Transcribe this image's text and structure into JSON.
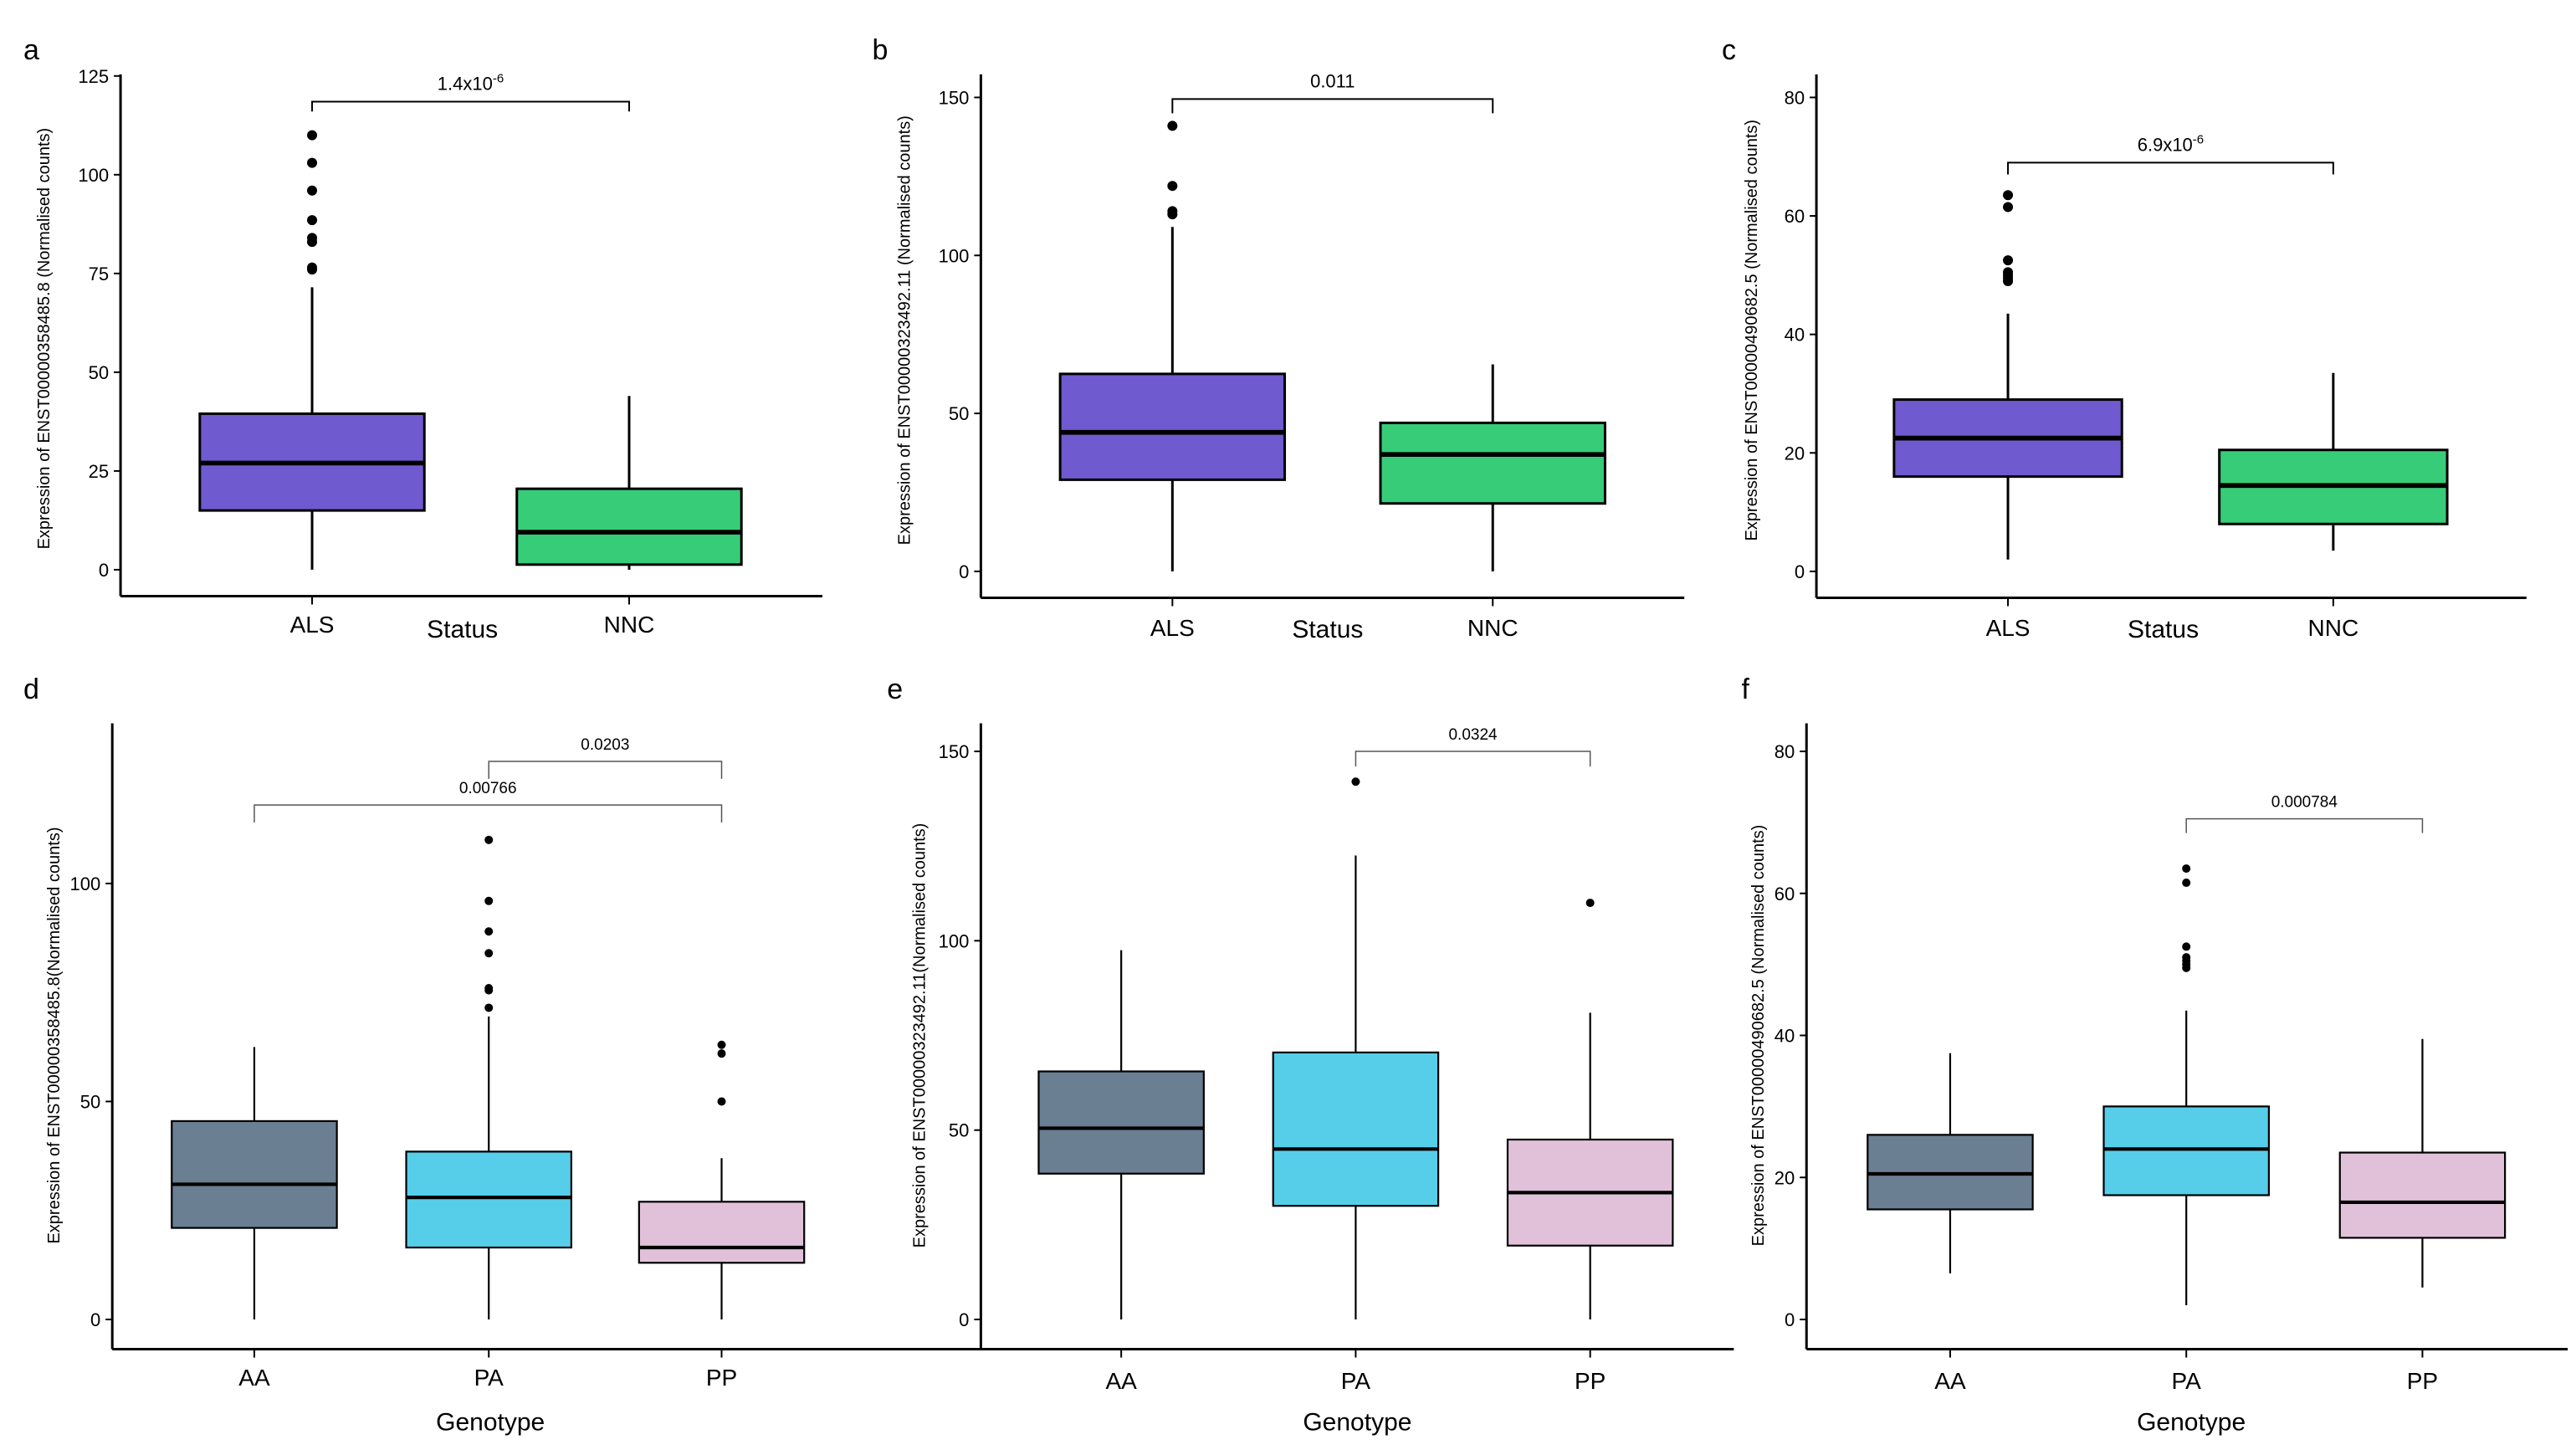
{
  "chart_data": [
    {
      "panel": "a",
      "type": "box",
      "xlabel": "Status",
      "ylabel": "Expression of ENST00000358485.8 (Normalised counts)",
      "yticks": [
        0,
        25,
        50,
        75,
        100,
        125
      ],
      "ylim": [
        -6,
        125
      ],
      "categories": [
        "ALS",
        "NNC"
      ],
      "colors": [
        "#6F5ACF",
        "#37CD78"
      ],
      "boxes": [
        {
          "min": 0,
          "q1": 15,
          "median": 27,
          "q3": 39.5,
          "max": 71.5,
          "outliers": [
            76,
            76.5,
            83,
            84,
            88.5,
            96,
            103,
            110
          ]
        },
        {
          "min": 0,
          "q1": 1.3,
          "median": 9.5,
          "q3": 20.5,
          "max": 44,
          "outliers": []
        }
      ],
      "comparisons": [
        {
          "from": 0,
          "to": 1,
          "y": 118.5,
          "tick_to": 116,
          "label": "1.4x10",
          "sup": "-6"
        }
      ]
    },
    {
      "panel": "b",
      "type": "box",
      "xlabel": "Status",
      "ylabel": "Expression of ENST00000323492.11 (Normalised counts)",
      "yticks": [
        0,
        50,
        100,
        150
      ],
      "ylim": [
        -8,
        150
      ],
      "categories": [
        "ALS",
        "NNC"
      ],
      "colors": [
        "#6F5ACF",
        "#37CD78"
      ],
      "boxes": [
        {
          "min": 0,
          "q1": 29,
          "median": 44,
          "q3": 62.5,
          "max": 109,
          "outliers": [
            113,
            114,
            122,
            141
          ]
        },
        {
          "min": 0,
          "q1": 21.5,
          "median": 37,
          "q3": 47,
          "max": 65.5,
          "outliers": []
        }
      ],
      "comparisons": [
        {
          "from": 0,
          "to": 1,
          "y": 149.5,
          "tick_to": 145,
          "label": "0.011",
          "sup": ""
        }
      ]
    },
    {
      "panel": "c",
      "type": "box",
      "xlabel": "Status",
      "ylabel": "Expression of ENST00000490682.5 (Normalised counts)",
      "yticks": [
        0,
        20,
        40,
        60,
        80
      ],
      "ylim": [
        -4,
        80
      ],
      "categories": [
        "ALS",
        "NNC"
      ],
      "colors": [
        "#6F5ACF",
        "#37CD78"
      ],
      "boxes": [
        {
          "min": 2,
          "q1": 16,
          "median": 22.5,
          "q3": 29,
          "max": 43.5,
          "outliers": [
            49,
            49.5,
            50,
            50.5,
            52.5,
            61.5,
            63.5
          ]
        },
        {
          "min": 3.5,
          "q1": 8,
          "median": 14.5,
          "q3": 20.5,
          "max": 33.5,
          "outliers": []
        }
      ],
      "comparisons": [
        {
          "from": 0,
          "to": 1,
          "y": 69,
          "tick_to": 67,
          "label": "6.9x10",
          "sup": "-6"
        }
      ]
    },
    {
      "panel": "d",
      "type": "box",
      "xlabel": "Genotype",
      "ylabel": "Expression of ENST00000358485.8(Normalised counts)",
      "yticks": [
        0,
        50,
        100
      ],
      "ylim": [
        -7,
        137
      ],
      "categories": [
        "AA",
        "PA",
        "PP"
      ],
      "colors": [
        "#6A7F91",
        "#56CEEA",
        "#E1C1D9"
      ],
      "boxes": [
        {
          "min": 0,
          "q1": 21,
          "median": 31,
          "q3": 45.5,
          "max": 62.5,
          "outliers": []
        },
        {
          "min": 0,
          "q1": 16.5,
          "median": 28,
          "q3": 38.5,
          "max": 69.5,
          "outliers": [
            71.5,
            75.5,
            76,
            84,
            89,
            96,
            110
          ]
        },
        {
          "min": 0,
          "q1": 13,
          "median": 16.5,
          "q3": 27,
          "max": 37,
          "outliers": [
            50,
            61,
            63
          ]
        }
      ],
      "comparisons": [
        {
          "from": 1,
          "to": 2,
          "y": 128,
          "tick_to": 124,
          "label": "0.0203",
          "sup": ""
        },
        {
          "from": 0,
          "to": 2,
          "y": 118,
          "tick_to": 114,
          "label": "0.00766",
          "sup": ""
        }
      ]
    },
    {
      "panel": "e",
      "type": "box",
      "xlabel": "Genotype",
      "ylabel": "Expression of ENST00000323492.11(Normalised counts)",
      "yticks": [
        0,
        50,
        100,
        150
      ],
      "ylim": [
        -8,
        157
      ],
      "categories": [
        "AA",
        "PA",
        "PP"
      ],
      "colors": [
        "#6A7F91",
        "#56CEEA",
        "#E1C1D9"
      ],
      "boxes": [
        {
          "min": 0,
          "q1": 38.5,
          "median": 50.5,
          "q3": 65.5,
          "max": 97.5,
          "outliers": []
        },
        {
          "min": 0,
          "q1": 30,
          "median": 45,
          "q3": 70.5,
          "max": 122.5,
          "outliers": [
            142
          ]
        },
        {
          "min": 0,
          "q1": 19.5,
          "median": 33.5,
          "q3": 47.5,
          "max": 81,
          "outliers": [
            110
          ]
        }
      ],
      "comparisons": [
        {
          "from": 1,
          "to": 2,
          "y": 150,
          "tick_to": 146,
          "label": "0.0324",
          "sup": ""
        }
      ]
    },
    {
      "panel": "f",
      "type": "box",
      "xlabel": "Genotype",
      "ylabel": "Expression of ENST00000490682.5 (Normalised counts)",
      "yticks": [
        0,
        20,
        40,
        60,
        80
      ],
      "ylim": [
        -4,
        84
      ],
      "categories": [
        "AA",
        "PA",
        "PP"
      ],
      "colors": [
        "#6A7F91",
        "#56CEEA",
        "#E1C1D9"
      ],
      "boxes": [
        {
          "min": 6.5,
          "q1": 15.5,
          "median": 20.5,
          "q3": 26,
          "max": 37.5,
          "outliers": []
        },
        {
          "min": 2,
          "q1": 17.5,
          "median": 24,
          "q3": 30,
          "max": 43.5,
          "outliers": [
            49.5,
            50,
            50.5,
            51,
            52.5,
            61.5,
            63.5
          ]
        },
        {
          "min": 4.5,
          "q1": 11.5,
          "median": 16.5,
          "q3": 23.5,
          "max": 39.5,
          "outliers": []
        }
      ],
      "comparisons": [
        {
          "from": 1,
          "to": 2,
          "y": 70.5,
          "tick_to": 68.5,
          "label": "0.000784",
          "sup": ""
        }
      ]
    }
  ]
}
